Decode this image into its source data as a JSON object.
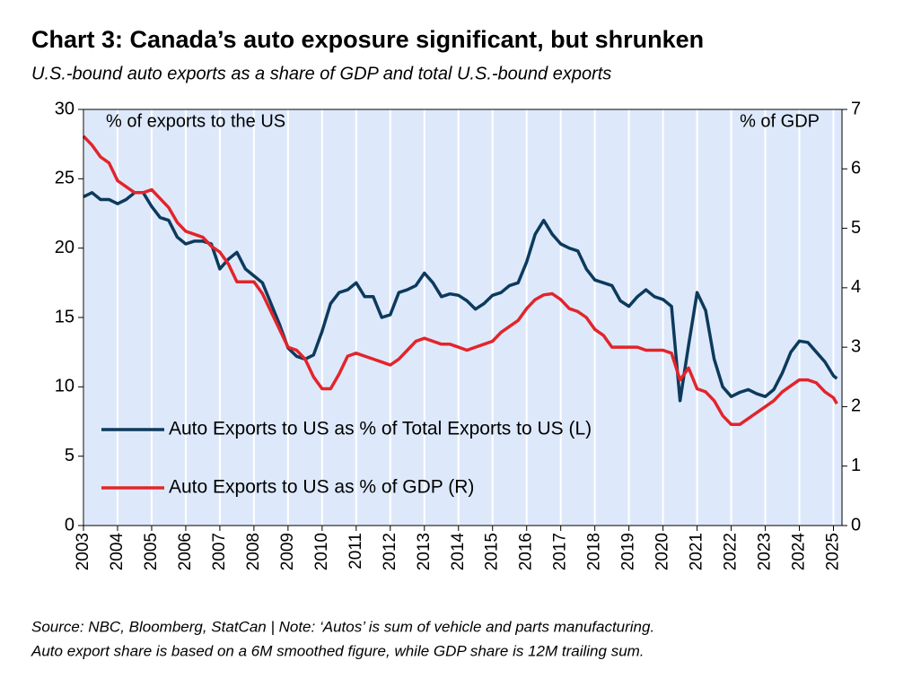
{
  "chart_data": {
    "type": "line",
    "title": "Chart 3: Canada’s auto exposure significant, but shrunken",
    "subtitle": "U.S.-bound auto exports as a share of GDP and total U.S.-bound exports",
    "ylabel": "% of exports to the US",
    "y2label": "% of GDP",
    "notes": [
      "Source: NBC, Bloomberg, StatCan | Note: ‘Autos’ is sum of vehicle and parts manufacturing.",
      "Auto export share is based on a 6M smoothed figure, while GDP share is 12M trailing sum."
    ],
    "x": [
      2003.0,
      2003.25,
      2003.5,
      2003.75,
      2004.0,
      2004.25,
      2004.5,
      2004.75,
      2005.0,
      2005.25,
      2005.5,
      2005.75,
      2006.0,
      2006.25,
      2006.5,
      2006.75,
      2007.0,
      2007.25,
      2007.5,
      2007.75,
      2008.0,
      2008.25,
      2008.5,
      2008.75,
      2009.0,
      2009.25,
      2009.5,
      2009.75,
      2010.0,
      2010.25,
      2010.5,
      2010.75,
      2011.0,
      2011.25,
      2011.5,
      2011.75,
      2012.0,
      2012.25,
      2012.5,
      2012.75,
      2013.0,
      2013.25,
      2013.5,
      2013.75,
      2014.0,
      2014.25,
      2014.5,
      2014.75,
      2015.0,
      2015.25,
      2015.5,
      2015.75,
      2016.0,
      2016.25,
      2016.5,
      2016.75,
      2017.0,
      2017.25,
      2017.5,
      2017.75,
      2018.0,
      2018.25,
      2018.5,
      2018.75,
      2019.0,
      2019.25,
      2019.5,
      2019.75,
      2020.0,
      2020.25,
      2020.5,
      2020.75,
      2021.0,
      2021.25,
      2021.5,
      2021.75,
      2022.0,
      2022.25,
      2022.5,
      2022.75,
      2023.0,
      2023.25,
      2023.5,
      2023.75,
      2024.0,
      2024.25,
      2024.5,
      2024.75,
      2025.0,
      2025.1
    ],
    "series": [
      {
        "name": "Auto Exports to US as % of Total Exports to US (L)",
        "color": "#0d3a5c",
        "axis": "y",
        "values": [
          23.7,
          24.0,
          23.5,
          23.5,
          23.2,
          23.5,
          24.0,
          24.0,
          23.0,
          22.2,
          22.0,
          20.8,
          20.3,
          20.5,
          20.5,
          20.3,
          18.5,
          19.2,
          19.7,
          18.5,
          18.0,
          17.5,
          16.0,
          14.5,
          12.8,
          12.2,
          12.0,
          12.3,
          14.0,
          16.0,
          16.8,
          17.0,
          17.5,
          16.5,
          16.5,
          15.0,
          15.2,
          16.8,
          17.0,
          17.3,
          18.2,
          17.5,
          16.5,
          16.7,
          16.6,
          16.2,
          15.6,
          16.0,
          16.6,
          16.8,
          17.3,
          17.5,
          19.0,
          21.0,
          22.0,
          21.0,
          20.3,
          20.0,
          19.8,
          18.5,
          17.7,
          17.5,
          17.3,
          16.2,
          15.8,
          16.5,
          17.0,
          16.5,
          16.3,
          15.8,
          9.0,
          13.0,
          16.8,
          15.5,
          12.0,
          10.0,
          9.3,
          9.6,
          9.8,
          9.5,
          9.3,
          9.8,
          11.0,
          12.5,
          13.3,
          13.2,
          12.5,
          11.8,
          10.8,
          10.6
        ]
      },
      {
        "name": "Auto Exports to US as % of GDP (R)",
        "color": "#e3242b",
        "axis": "y2",
        "values": [
          6.55,
          6.4,
          6.2,
          6.1,
          5.8,
          5.7,
          5.6,
          5.6,
          5.65,
          5.5,
          5.35,
          5.1,
          4.95,
          4.9,
          4.85,
          4.7,
          4.6,
          4.4,
          4.1,
          4.1,
          4.1,
          3.9,
          3.6,
          3.3,
          3.0,
          2.95,
          2.8,
          2.5,
          2.3,
          2.3,
          2.55,
          2.85,
          2.9,
          2.85,
          2.8,
          2.75,
          2.7,
          2.8,
          2.95,
          3.1,
          3.15,
          3.1,
          3.05,
          3.05,
          3.0,
          2.95,
          3.0,
          3.05,
          3.1,
          3.25,
          3.35,
          3.45,
          3.65,
          3.8,
          3.88,
          3.9,
          3.8,
          3.65,
          3.6,
          3.5,
          3.3,
          3.2,
          3.0,
          3.0,
          3.0,
          3.0,
          2.95,
          2.95,
          2.95,
          2.9,
          2.45,
          2.65,
          2.3,
          2.25,
          2.1,
          1.85,
          1.7,
          1.7,
          1.8,
          1.9,
          2.0,
          2.1,
          2.25,
          2.35,
          2.45,
          2.45,
          2.4,
          2.25,
          2.15,
          2.05
        ]
      }
    ],
    "xlim": [
      2003,
      2025.25
    ],
    "xticks": [
      2003,
      2004,
      2005,
      2006,
      2007,
      2008,
      2009,
      2010,
      2011,
      2012,
      2013,
      2014,
      2015,
      2016,
      2017,
      2018,
      2019,
      2020,
      2021,
      2022,
      2023,
      2024,
      2025
    ],
    "ylim": [
      0,
      30
    ],
    "yticks": [
      0,
      5,
      10,
      15,
      20,
      25,
      30
    ],
    "y2lim": [
      0,
      7
    ],
    "y2ticks": [
      0,
      1,
      2,
      3,
      4,
      5,
      6,
      7
    ],
    "grid": true,
    "legend": "lower left"
  }
}
